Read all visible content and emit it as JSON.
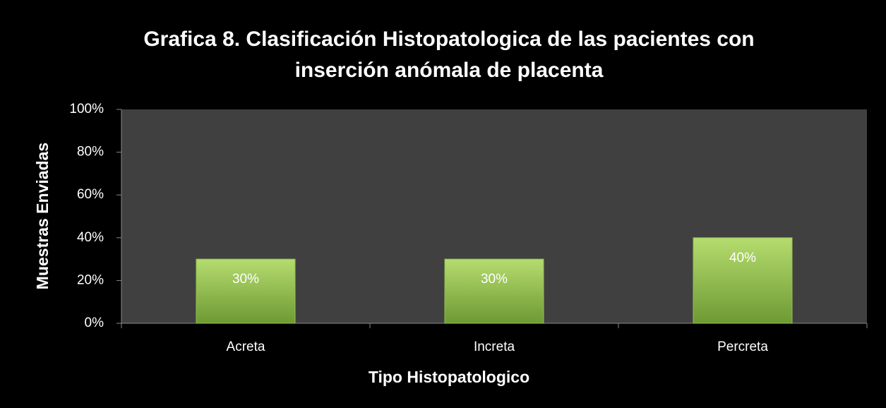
{
  "chart_data": {
    "type": "bar",
    "title": [
      "Grafica 8. Clasificación Histopatologica de las pacientes con",
      "inserción anómala de placenta"
    ],
    "x_label": "Tipo Histopatologico",
    "y_label": "Muestras Enviadas",
    "categories": [
      "Acreta",
      "Increta",
      "Percreta"
    ],
    "values": [
      30,
      30,
      40
    ],
    "value_labels": [
      "30%",
      "30%",
      "40%"
    ],
    "color": "#92c14a",
    "ylim": [
      0,
      100
    ],
    "yticks": [
      {
        "value": 0,
        "label": "0%"
      },
      {
        "value": 20,
        "label": "20%"
      },
      {
        "value": 40,
        "label": "40%"
      },
      {
        "value": 60,
        "label": "60%"
      },
      {
        "value": 80,
        "label": "80%"
      },
      {
        "value": 100,
        "label": "100%"
      }
    ],
    "grid": false
  }
}
